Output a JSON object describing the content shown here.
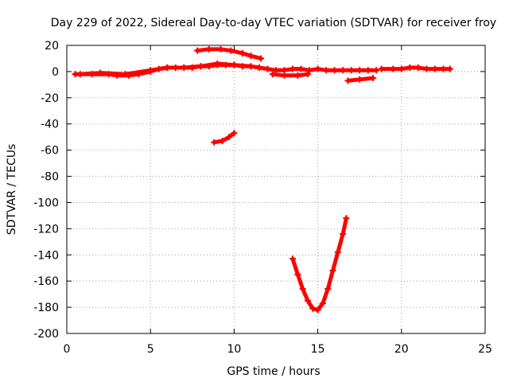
{
  "chart_data": {
    "type": "scatter",
    "title": "Day 229 of 2022, Sidereal Day-to-day VTEC variation (SDTVAR) for receiver froy",
    "xlabel": "GPS time / hours",
    "ylabel": "SDTVAR / TECUs",
    "xlim": [
      0,
      25
    ],
    "ylim": [
      -200,
      20
    ],
    "xticks": [
      0,
      5,
      10,
      15,
      20,
      25
    ],
    "yticks": [
      20,
      0,
      -20,
      -40,
      -60,
      -80,
      -100,
      -120,
      -140,
      -160,
      -180,
      -200
    ],
    "grid": true,
    "colors": {
      "series": "#ff0000"
    },
    "series": [
      {
        "x": [
          0.5,
          1.5,
          2.5,
          3.0,
          3.7,
          4.3,
          5.0,
          5.5,
          6.0,
          6.5,
          7.0,
          7.5,
          8.0,
          8.5,
          9.0,
          9.5,
          10.0,
          10.5,
          11.0,
          11.5,
          12.0,
          12.5,
          13.0,
          13.5,
          14.0,
          14.5,
          15.0,
          15.5,
          16.0,
          16.5,
          17.0,
          17.5,
          18.0,
          18.5
        ],
        "y": [
          -2,
          -2,
          -2,
          -3,
          -3,
          -2,
          0,
          2,
          3,
          3,
          3,
          3,
          4,
          4,
          5,
          5,
          5,
          4,
          4,
          3,
          2,
          1,
          1,
          2,
          2,
          1,
          2,
          1,
          1,
          1,
          1,
          1,
          1,
          1
        ]
      },
      {
        "x": [
          0.8,
          2.0,
          3.5,
          5.0,
          6.0,
          7.0,
          8.0,
          9.0,
          10.0,
          11.0
        ],
        "y": [
          -2,
          -1,
          -2,
          1,
          3,
          3,
          4,
          6,
          5,
          4
        ]
      },
      {
        "x": [
          7.8,
          8.5,
          9.2,
          9.8,
          10.5,
          11.0,
          11.6
        ],
        "y": [
          16,
          17,
          17,
          16,
          14,
          12,
          10
        ]
      },
      {
        "x": [
          12.3,
          13.0,
          13.8,
          14.4
        ],
        "y": [
          -2,
          -3,
          -3,
          -2
        ]
      },
      {
        "x": [
          16.8,
          17.5,
          18.3
        ],
        "y": [
          -7,
          -6,
          -5
        ]
      },
      {
        "x": [
          18.8,
          19.5,
          20.0,
          20.5,
          21.0,
          21.5,
          22.0,
          22.5,
          22.9
        ],
        "y": [
          2,
          2,
          2,
          3,
          3,
          2,
          2,
          2,
          2
        ]
      },
      {
        "x": [
          8.8,
          9.3,
          9.7,
          10.0
        ],
        "y": [
          -54,
          -53,
          -50,
          -47
        ]
      },
      {
        "x": [
          13.5,
          13.8,
          14.1,
          14.4,
          14.7,
          15.0,
          15.3,
          15.6,
          15.9,
          16.2,
          16.5,
          16.7
        ],
        "y": [
          -143,
          -155,
          -166,
          -175,
          -181,
          -182,
          -177,
          -166,
          -152,
          -138,
          -124,
          -112
        ]
      }
    ]
  }
}
